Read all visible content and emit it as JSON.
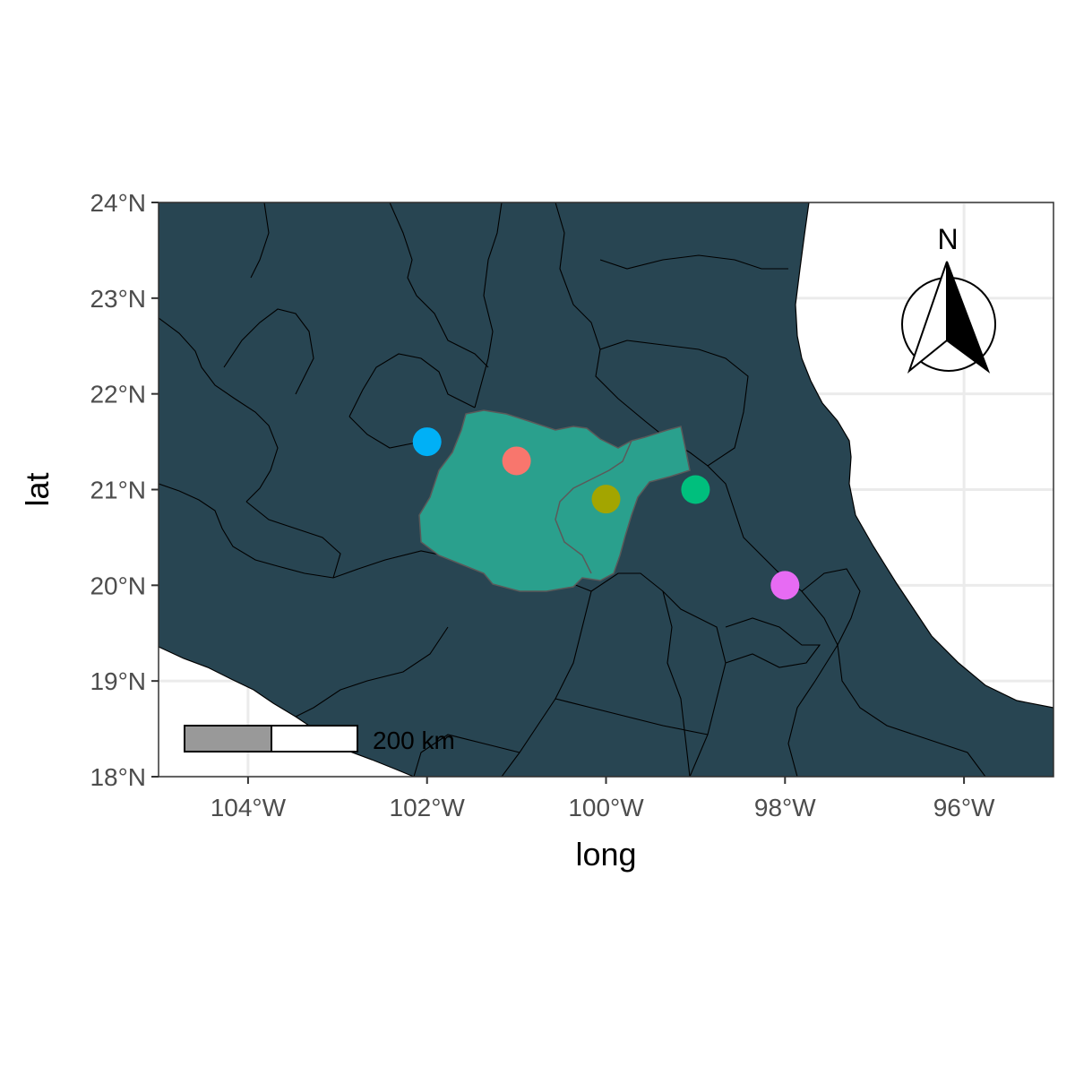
{
  "chart_data": {
    "type": "map",
    "xlabel": "long",
    "ylabel": "lat",
    "xlim": [
      -105,
      -95
    ],
    "ylim": [
      18,
      24
    ],
    "x_ticks": [
      {
        "value": -104,
        "label": "104°W"
      },
      {
        "value": -102,
        "label": "102°W"
      },
      {
        "value": -100,
        "label": "100°W"
      },
      {
        "value": -98,
        "label": "98°W"
      },
      {
        "value": -96,
        "label": "96°W"
      }
    ],
    "y_ticks": [
      {
        "value": 18,
        "label": "18°N"
      },
      {
        "value": 19,
        "label": "19°N"
      },
      {
        "value": 20,
        "label": "20°N"
      },
      {
        "value": 21,
        "label": "21°N"
      },
      {
        "value": 22,
        "label": "22°N"
      },
      {
        "value": 23,
        "label": "23°N"
      },
      {
        "value": 24,
        "label": "24°N"
      }
    ],
    "grid": true,
    "colors": {
      "land": "#284552",
      "highlight_region": "#2aa08d",
      "water": "#ffffff",
      "gridline": "#ebebeb",
      "border": "#000000"
    },
    "points": [
      {
        "long": -101,
        "lat": 21.3,
        "color": "#F8766D"
      },
      {
        "long": -100,
        "lat": 20.9,
        "color": "#A3A500"
      },
      {
        "long": -99,
        "lat": 21.0,
        "color": "#00BF7D"
      },
      {
        "long": -102,
        "lat": 21.5,
        "color": "#00B0F6"
      },
      {
        "long": -98,
        "lat": 20.0,
        "color": "#E76BF3"
      }
    ],
    "scale_bar": {
      "label": "200 km",
      "position": "bottom-left"
    },
    "north_arrow": {
      "label": "N",
      "position": "top-right"
    }
  }
}
